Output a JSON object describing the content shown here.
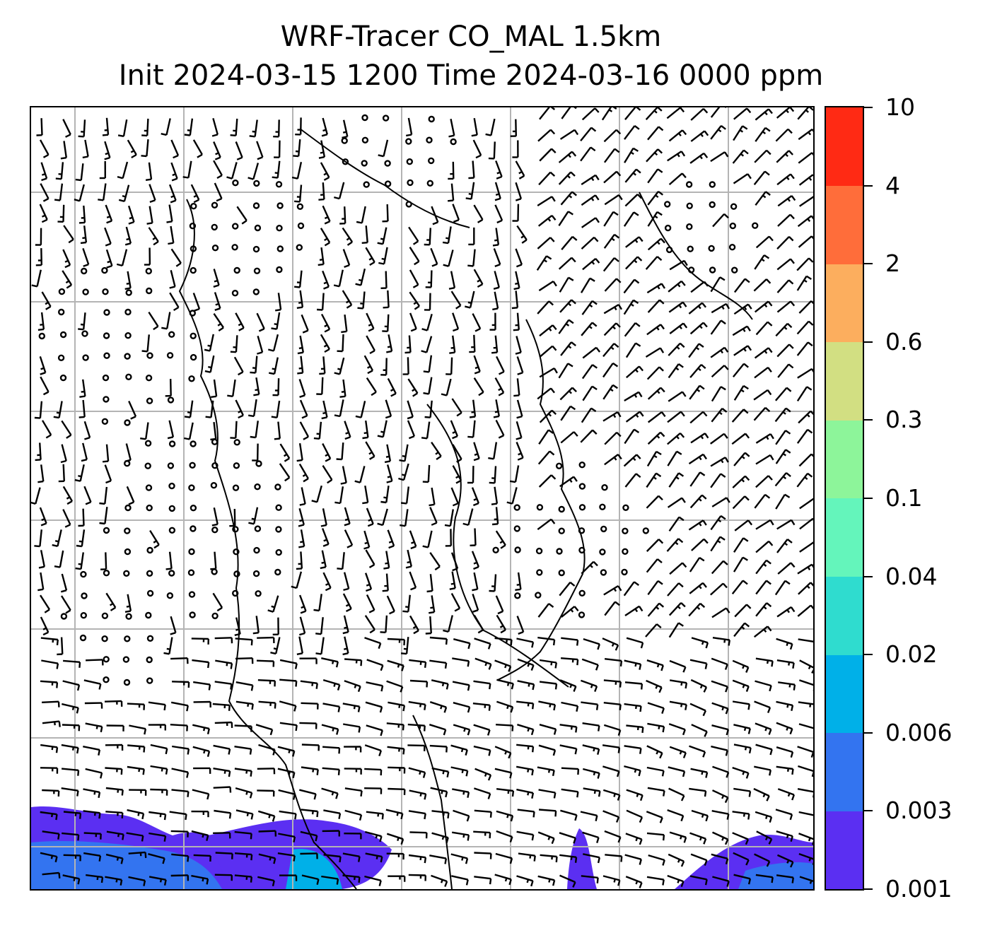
{
  "title": {
    "line1": "WRF-Tracer CO_MAL 1.5km",
    "line2": "Init 2024-03-15 1200 Time 2024-03-16 0000 ppm"
  },
  "colorbar": {
    "tick_labels": [
      "0.001",
      "0.003",
      "0.006",
      "0.02",
      "0.04",
      "0.1",
      "0.3",
      "0.6",
      "2",
      "4",
      "10"
    ],
    "band_colors": [
      "#5b2ff2",
      "#3374f0",
      "#00b0e8",
      "#2fdccf",
      "#64f5bb",
      "#8df59a",
      "#d2df82",
      "#fcae5e",
      "#ff6d3a",
      "#ff2a14"
    ]
  },
  "map": {
    "gridlines": true,
    "gridline_color": "#b4b4b4",
    "coastline_color": "#000000",
    "wind_barbs_color": "#000000",
    "tracer_field_colors": [
      "#5b2ff2",
      "#3374f0",
      "#00b0e8"
    ]
  }
}
